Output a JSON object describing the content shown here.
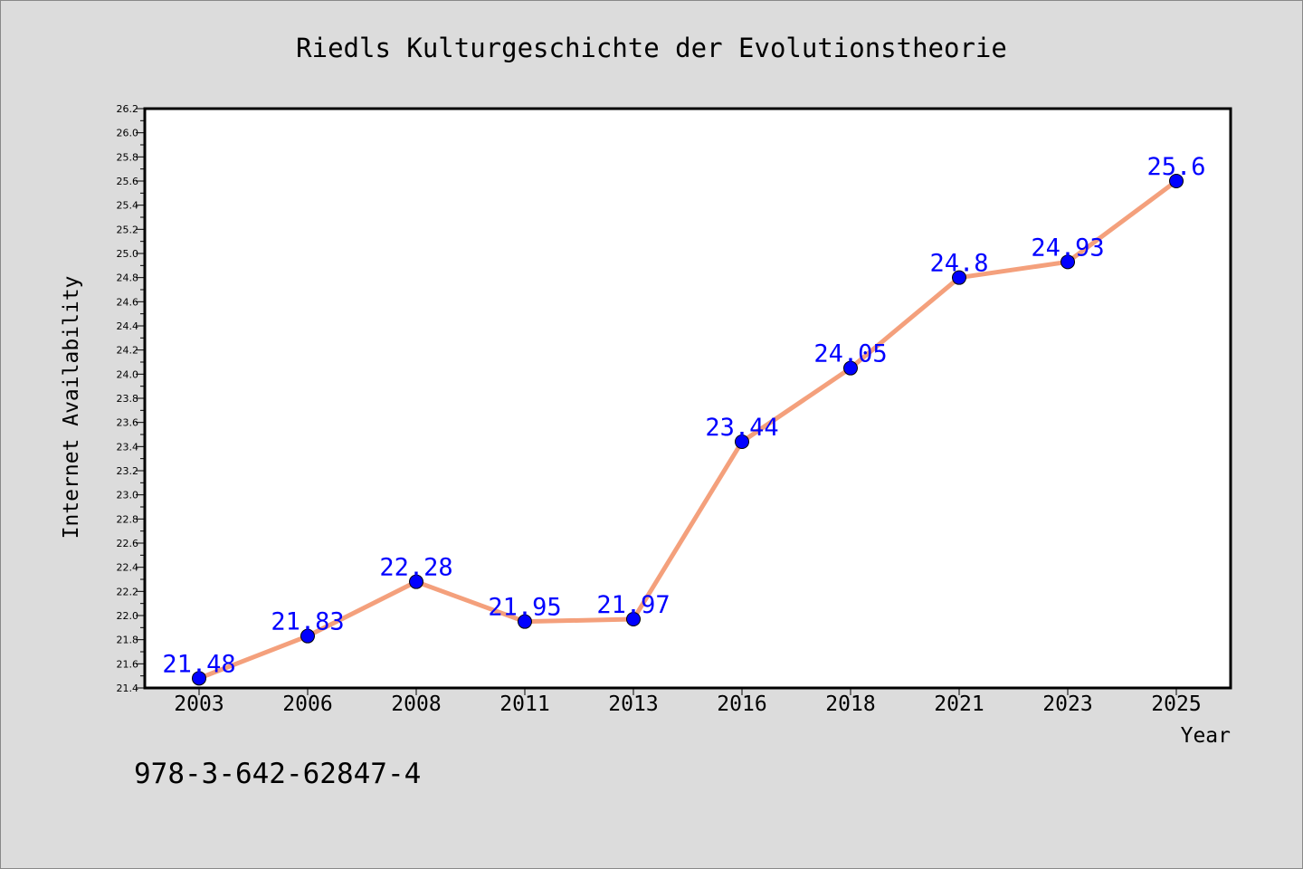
{
  "chart_data": {
    "type": "line",
    "title": "Riedls Kulturgeschichte der Evolutionstheorie",
    "xlabel": "Year",
    "ylabel": "Internet Availability",
    "categories": [
      "2003",
      "2006",
      "2008",
      "2011",
      "2013",
      "2016",
      "2018",
      "2021",
      "2023",
      "2025"
    ],
    "series": [
      {
        "values": [
          21.48,
          21.83,
          22.28,
          21.95,
          21.97,
          23.44,
          24.05,
          24.8,
          24.93,
          25.6
        ],
        "labels": [
          "21.48",
          "21.83",
          "22.28",
          "21.95",
          "21.97",
          "23.44",
          "24.05",
          "24.8",
          "24.93",
          "25.6"
        ]
      }
    ],
    "ylim": [
      21.4,
      26.2
    ],
    "yticks": [
      "21.4",
      "21.6",
      "21.8",
      "22.0",
      "22.2",
      "22.4",
      "22.6",
      "22.8",
      "23.0",
      "23.2",
      "23.4",
      "23.6",
      "23.8",
      "24.0",
      "24.2",
      "24.4",
      "24.6",
      "24.8",
      "25.0",
      "25.2",
      "25.4",
      "25.6",
      "25.8",
      "26.0",
      "26.2"
    ],
    "grid": false,
    "legend": "none",
    "colors": {
      "line": "#f4a07c",
      "marker": "#0000ff",
      "label": "#0000ff",
      "background": "#dcdcdc",
      "plot_area": "#ffffff"
    }
  },
  "footer_text": "978-3-642-62847-4"
}
